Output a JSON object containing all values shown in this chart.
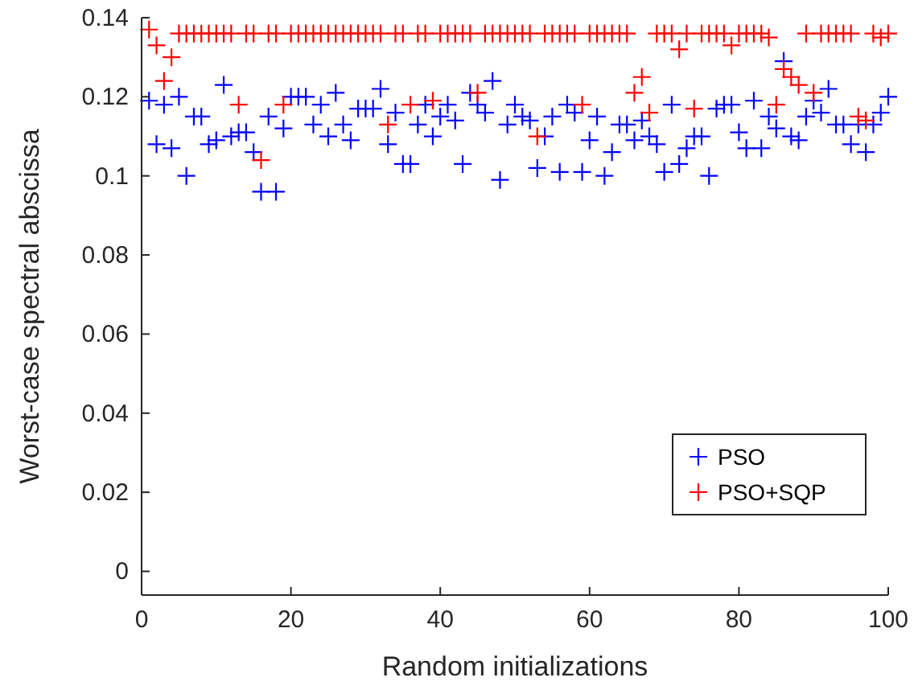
{
  "chart_data": {
    "type": "scatter",
    "xlabel": "Random initializations",
    "ylabel": "Worst-case spectral abscissa",
    "x": [
      1,
      2,
      3,
      4,
      5,
      6,
      7,
      8,
      9,
      10,
      11,
      12,
      13,
      14,
      15,
      16,
      17,
      18,
      19,
      20,
      21,
      22,
      23,
      24,
      25,
      26,
      27,
      28,
      29,
      30,
      31,
      32,
      33,
      34,
      35,
      36,
      37,
      38,
      39,
      40,
      41,
      42,
      43,
      44,
      45,
      46,
      47,
      48,
      49,
      50,
      51,
      52,
      53,
      54,
      55,
      56,
      57,
      58,
      59,
      60,
      61,
      62,
      63,
      64,
      65,
      66,
      67,
      68,
      69,
      70,
      71,
      72,
      73,
      74,
      75,
      76,
      77,
      78,
      79,
      80,
      81,
      82,
      83,
      84,
      85,
      86,
      87,
      88,
      89,
      90,
      91,
      92,
      93,
      94,
      95,
      96,
      97,
      98,
      99,
      100
    ],
    "series": [
      {
        "name": "PSO",
        "color": "#0000ff",
        "values": [
          0.119,
          0.108,
          0.118,
          0.107,
          0.12,
          0.1,
          0.115,
          0.115,
          0.108,
          0.109,
          0.123,
          0.11,
          0.111,
          0.111,
          0.106,
          0.096,
          0.115,
          0.096,
          0.112,
          0.12,
          0.12,
          0.12,
          0.113,
          0.118,
          0.11,
          0.121,
          0.113,
          0.109,
          0.117,
          0.117,
          0.117,
          0.122,
          0.108,
          0.116,
          0.103,
          0.103,
          0.113,
          0.118,
          0.11,
          0.115,
          0.118,
          0.114,
          0.103,
          0.121,
          0.118,
          0.116,
          0.124,
          0.099,
          0.113,
          0.118,
          0.115,
          0.114,
          0.102,
          0.11,
          0.115,
          0.101,
          0.118,
          0.116,
          0.101,
          0.109,
          0.115,
          0.1,
          0.106,
          0.113,
          0.113,
          0.109,
          0.114,
          0.11,
          0.108,
          0.101,
          0.118,
          0.103,
          0.107,
          0.11,
          0.11,
          0.1,
          0.117,
          0.118,
          0.118,
          0.111,
          0.107,
          0.119,
          0.107,
          0.115,
          0.112,
          0.129,
          0.11,
          0.109,
          0.115,
          0.119,
          0.116,
          0.122,
          0.113,
          0.113,
          0.108,
          0.113,
          0.106,
          0.113,
          0.116,
          0.12
        ]
      },
      {
        "name": "PSO+SQP",
        "color": "#ff0000",
        "values": [
          0.137,
          0.133,
          0.124,
          0.13,
          0.136,
          0.136,
          0.136,
          0.136,
          0.136,
          0.136,
          0.136,
          0.136,
          0.118,
          0.136,
          0.136,
          0.104,
          0.136,
          0.136,
          0.118,
          0.136,
          0.136,
          0.136,
          0.136,
          0.136,
          0.136,
          0.136,
          0.136,
          0.136,
          0.136,
          0.136,
          0.136,
          0.136,
          0.113,
          0.136,
          0.136,
          0.118,
          0.136,
          0.136,
          0.119,
          0.136,
          0.136,
          0.136,
          0.136,
          0.136,
          0.121,
          0.136,
          0.136,
          0.136,
          0.136,
          0.136,
          0.136,
          0.136,
          0.11,
          0.136,
          0.136,
          0.136,
          0.136,
          0.136,
          0.118,
          0.136,
          0.136,
          0.136,
          0.136,
          0.136,
          0.136,
          0.121,
          0.125,
          0.116,
          0.136,
          0.136,
          0.136,
          0.132,
          0.136,
          0.117,
          0.136,
          0.136,
          0.136,
          0.136,
          0.133,
          0.136,
          0.136,
          0.136,
          0.136,
          0.135,
          0.118,
          0.127,
          0.125,
          0.123,
          0.136,
          0.121,
          0.136,
          0.136,
          0.136,
          0.136,
          0.136,
          0.115,
          0.114,
          0.136,
          0.135,
          0.136
        ]
      }
    ],
    "xlim": [
      0,
      100
    ],
    "xticks": [
      0,
      20,
      40,
      60,
      80,
      100
    ],
    "ylim": [
      -0.006,
      0.14
    ],
    "yticks": [
      0,
      0.02,
      0.04,
      0.06,
      0.08,
      0.1,
      0.12,
      0.14
    ],
    "marker": "cross",
    "legend": "bottom right",
    "grid": false
  }
}
